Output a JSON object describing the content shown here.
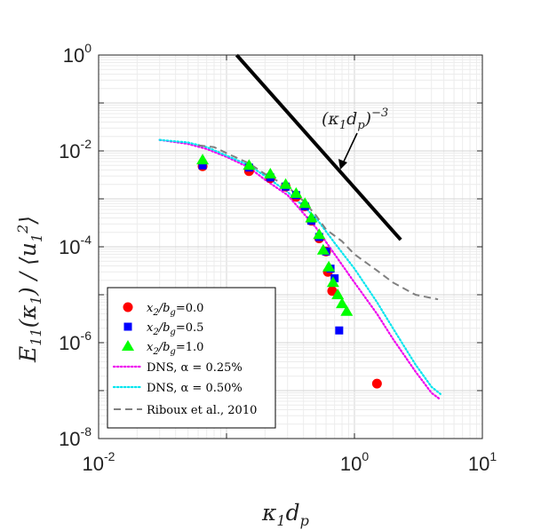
{
  "chart_data": {
    "type": "scatter",
    "xscale": "log",
    "yscale": "log",
    "xlim": [
      0.01,
      10
    ],
    "ylim": [
      1e-08,
      1
    ],
    "grid": true,
    "legend_position": "bottom-left",
    "xlabel": "κ1 dp",
    "ylabel": "E11(κ1) / ⟨u1²⟩",
    "x_ticks": [
      {
        "base": "10",
        "exp": "-2"
      },
      {
        "base": "10",
        "exp": "0"
      },
      {
        "base": "10",
        "exp": "1"
      }
    ],
    "y_ticks": [
      {
        "base": "10",
        "exp": "0"
      },
      {
        "base": "10",
        "exp": "-2"
      },
      {
        "base": "10",
        "exp": "-4"
      },
      {
        "base": "10",
        "exp": "-6"
      },
      {
        "base": "10",
        "exp": "-8"
      }
    ],
    "annotation": {
      "text": "(κ1dp)−3",
      "base": "(κ",
      "sub1": "1",
      "mid": "d",
      "sub2": "p",
      "close": ")",
      "exp": "−3"
    },
    "series": [
      {
        "name": "x2/bg=0.0",
        "marker": "circle",
        "color": "#ff0000",
        "x": [
          0.065,
          0.15,
          0.22,
          0.29,
          0.35,
          0.41,
          0.46,
          0.53,
          0.6,
          0.62,
          0.67,
          1.5
        ],
        "y": [
          0.0048,
          0.0038,
          0.0027,
          0.0018,
          0.0011,
          0.0007,
          0.00035,
          0.00015,
          8e-05,
          3e-05,
          1.2e-05,
          1.4e-07
        ]
      },
      {
        "name": "x2/bg=0.5",
        "marker": "square",
        "color": "#0000ff",
        "x": [
          0.065,
          0.15,
          0.22,
          0.29,
          0.35,
          0.41,
          0.46,
          0.53,
          0.6,
          0.65,
          0.7,
          0.76
        ],
        "y": [
          0.005,
          0.0045,
          0.0028,
          0.0018,
          0.0012,
          0.0007,
          0.00035,
          0.00016,
          8e-05,
          3.5e-05,
          2.2e-05,
          1.8e-06
        ]
      },
      {
        "name": "x2/bg=1.0",
        "marker": "triangle",
        "color": "#00ff00",
        "x": [
          0.065,
          0.15,
          0.22,
          0.29,
          0.35,
          0.41,
          0.46,
          0.53,
          0.57,
          0.63,
          0.68,
          0.74,
          0.8,
          0.87
        ],
        "y": [
          0.0065,
          0.005,
          0.0033,
          0.002,
          0.0013,
          0.0008,
          0.0004,
          0.00018,
          8.5e-05,
          3.8e-05,
          1.8e-05,
          1e-05,
          6.5e-06,
          4.5e-06
        ]
      },
      {
        "name": "DNS, α = 0.25%",
        "style": "dotted",
        "color": "#ee00ee",
        "x": [
          0.03,
          0.05,
          0.07,
          0.1,
          0.15,
          0.2,
          0.3,
          0.5,
          0.7,
          1.0,
          1.5,
          2.0,
          3.0,
          4.0,
          4.7
        ],
        "y": [
          0.017,
          0.014,
          0.011,
          0.0075,
          0.0045,
          0.0025,
          0.0012,
          0.00025,
          7e-05,
          1.8e-05,
          4e-06,
          1.2e-06,
          2.5e-07,
          9e-08,
          6.5e-08
        ]
      },
      {
        "name": "DNS, α = 0.50%",
        "style": "dotted",
        "color": "#00e5ee",
        "x": [
          0.03,
          0.05,
          0.07,
          0.1,
          0.15,
          0.2,
          0.3,
          0.5,
          0.7,
          1.0,
          1.5,
          2.0,
          3.0,
          4.0,
          4.7
        ],
        "y": [
          0.017,
          0.015,
          0.012,
          0.008,
          0.005,
          0.003,
          0.0014,
          0.0004,
          0.00012,
          3.5e-05,
          7e-06,
          2e-06,
          3.5e-07,
          1.2e-07,
          8.5e-08
        ]
      },
      {
        "name": "Riboux et al., 2010",
        "style": "dashed",
        "color": "#808080",
        "x": [
          0.06,
          0.08,
          0.1,
          0.15,
          0.2,
          0.3,
          0.4,
          0.5,
          0.6,
          0.8,
          1.0,
          1.5,
          2.0,
          3.0,
          4.5
        ],
        "y": [
          0.013,
          0.012,
          0.009,
          0.0055,
          0.0033,
          0.0018,
          0.0009,
          0.00045,
          0.00023,
          0.00013,
          7e-05,
          3.2e-05,
          1.8e-05,
          1e-05,
          8e-06
        ]
      },
      {
        "name": "reference slope -3",
        "style": "solid-thick",
        "color": "#000000",
        "x": [
          0.12,
          2.3
        ],
        "y": [
          1.0,
          0.00014
        ]
      }
    ],
    "legend": [
      {
        "text": "x2/bg=0.0",
        "a": "x",
        "as": "2",
        "b": "/b",
        "bs": "g",
        "v": "=0.0",
        "marker": "circle",
        "color": "#ff0000"
      },
      {
        "text": "x2/bg=0.5",
        "a": "x",
        "as": "2",
        "b": "/b",
        "bs": "g",
        "v": "=0.5",
        "marker": "square",
        "color": "#0000ff"
      },
      {
        "text": "x2/bg=1.0",
        "a": "x",
        "as": "2",
        "b": "/b",
        "bs": "g",
        "v": "=1.0",
        "marker": "triangle",
        "color": "#00ff00"
      },
      {
        "text": "DNS, α = 0.25%",
        "marker": "dotted",
        "color": "#ee00ee"
      },
      {
        "text": "DNS, α = 0.50%",
        "marker": "dotted",
        "color": "#00e5ee"
      },
      {
        "text": "Riboux et al., 2010",
        "marker": "dashed",
        "color": "#808080"
      }
    ]
  }
}
